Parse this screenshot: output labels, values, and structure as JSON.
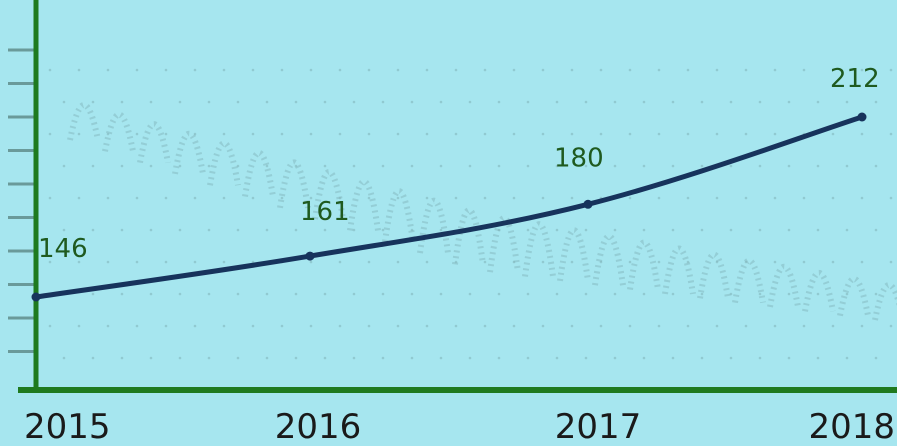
{
  "colors": {
    "background": "#a6e6ef",
    "axis": "#1f7a1f",
    "line": "#17335c",
    "data_label": "#1f5a1f",
    "decoration": "#7fb2b8"
  },
  "chart_data": {
    "type": "line",
    "x": [
      "2015",
      "2016",
      "2017",
      "2018"
    ],
    "series": [
      {
        "values": [
          146,
          161,
          180,
          212
        ]
      }
    ],
    "data_labels": [
      "146",
      "161",
      "180",
      "212"
    ],
    "title": "",
    "xlabel": "",
    "ylabel": "",
    "ylim": [
      100,
      250
    ],
    "grid": false,
    "legend": "none"
  }
}
